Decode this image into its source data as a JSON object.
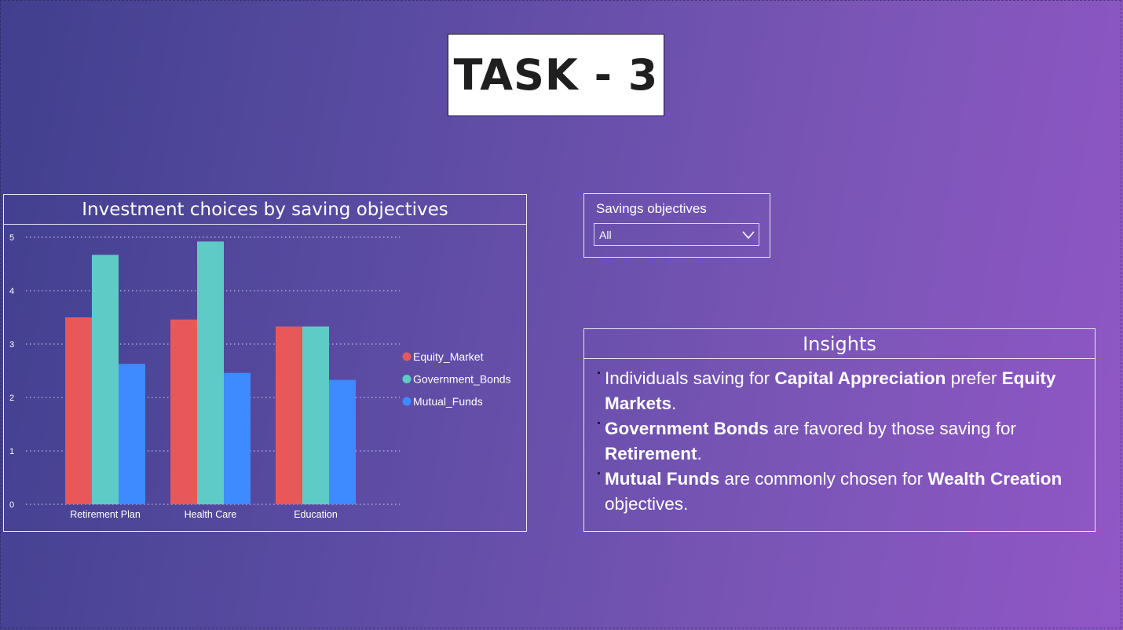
{
  "page": {
    "title": "TASK - 3"
  },
  "chart": {
    "title": "Investment choices by saving objectives",
    "chart_data": {
      "type": "bar",
      "categories": [
        "Retirement Plan",
        "Health Care",
        "Education"
      ],
      "series": [
        {
          "name": "Equity_Market",
          "color": "#e8585b",
          "values": [
            3.5,
            3.46,
            3.33
          ]
        },
        {
          "name": "Government_Bonds",
          "color": "#5ecbc7",
          "values": [
            4.67,
            4.92,
            3.33
          ]
        },
        {
          "name": "Mutual_Funds",
          "color": "#3d8bff",
          "values": [
            2.63,
            2.46,
            2.33
          ]
        }
      ],
      "yticks": [
        0,
        1,
        2,
        3,
        4,
        5
      ],
      "ylim": [
        0,
        5
      ],
      "grid": true,
      "legend_position": "right"
    }
  },
  "slicer": {
    "label": "Savings objectives",
    "value": "All",
    "icon": "chevron-down-icon"
  },
  "insights": {
    "title": "Insights",
    "items": [
      {
        "pre": "Individuals saving for ",
        "b1": "Capital Appreciation",
        "mid": " prefer ",
        "b2": "Equity Markets",
        "post": "."
      },
      {
        "pre": "",
        "b1": "Government Bonds",
        "mid": " are favored by those saving for ",
        "b2": "Retirement",
        "post": "."
      },
      {
        "pre": "",
        "b1": "Mutual Funds",
        "mid": " are commonly chosen for ",
        "b2": "Wealth Creation",
        "post": " objectives."
      }
    ]
  }
}
